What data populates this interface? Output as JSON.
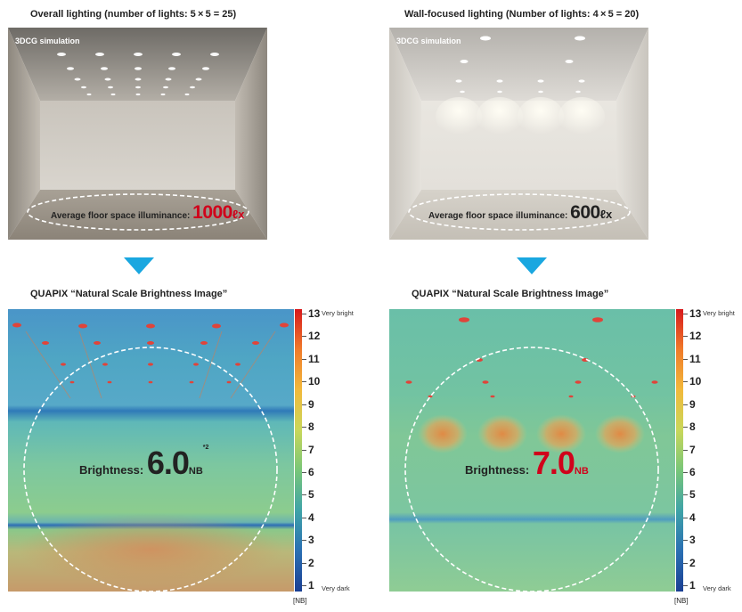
{
  "left": {
    "title": "Overall lighting (number of lights: 5 × 5 = 25)",
    "sim_label": "3DCG simulation",
    "illum_label": "Average floor space illuminance:",
    "illum_value": "1000",
    "illum_unit": "ℓx",
    "illum_color": "#d0021b",
    "brightness_title": "QUAPIX “Natural Scale Brightness Image”",
    "brightness_label": "Brightness:",
    "brightness_value": "6.0",
    "brightness_unit": "NB",
    "brightness_note": "*2",
    "brightness_color": "#222222"
  },
  "right": {
    "title": "Wall-focused lighting (Number of lights: 4 × 5 = 20)",
    "sim_label": "3DCG simulation",
    "illum_label": "Average floor space illuminance:",
    "illum_value": "600",
    "illum_unit": "ℓx",
    "illum_color": "#222222",
    "brightness_title": "QUAPIX “Natural Scale Brightness Image”",
    "brightness_label": "Brightness:",
    "brightness_value": "7.0",
    "brightness_unit": "NB",
    "brightness_color": "#d0021b"
  },
  "scale": {
    "ticks": [
      "13",
      "12",
      "11",
      "10",
      "9",
      "8",
      "7",
      "6",
      "5",
      "4",
      "3",
      "2",
      "1"
    ],
    "top_word": "Very bright",
    "bottom_word": "Very dark",
    "unit": "[NB]"
  },
  "arrow_color": "#1aa7e0"
}
